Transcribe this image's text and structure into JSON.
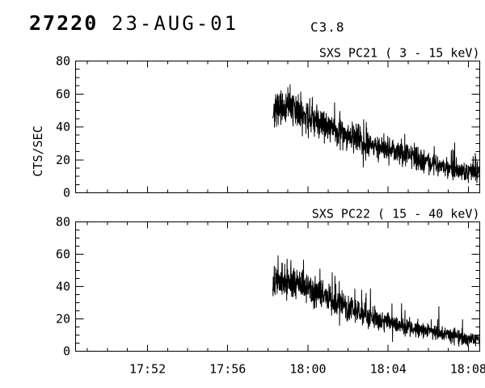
{
  "header": {
    "sequence_number": "27220",
    "date": "23-AUG-01",
    "goes_class": "C3.8"
  },
  "style": {
    "foreground": "#000000",
    "background": "#ffffff"
  },
  "x_axis": {
    "tick_labels": [
      "17:52",
      "17:56",
      "18:00",
      "18:04",
      "18:08"
    ],
    "tick_minutes_rel_1800": [
      -8,
      -4,
      0,
      4,
      8
    ],
    "minor_step_minutes": 1,
    "domain_minutes_rel_1800": [
      -11.59,
      8.57
    ]
  },
  "chart_data": [
    {
      "type": "line",
      "title": "SXS PC21  (  3 - 15 keV)",
      "ylabel": "CTS/SEC",
      "ylim": [
        0,
        80
      ],
      "ymajor_interval": 20,
      "yminor_interval": 5,
      "ytick_labels": [
        "0",
        "20",
        "40",
        "60",
        "80"
      ],
      "show_x_tick_labels": false,
      "grid": false,
      "series": {
        "name": "SXS PC21 (3-15 keV)",
        "start_minute": -1.75,
        "end_minute": 8.57,
        "envelope_minute_value": [
          [
            -1.75,
            50
          ],
          [
            -1,
            51
          ],
          [
            0,
            46
          ],
          [
            1,
            41
          ],
          [
            2,
            35
          ],
          [
            3,
            30
          ],
          [
            4,
            27
          ],
          [
            5,
            23
          ],
          [
            6,
            19
          ],
          [
            7,
            15
          ],
          [
            8,
            13
          ],
          [
            8.57,
            12
          ]
        ],
        "noise_std_base": 1.8,
        "noise_std_frac": 0.07,
        "spike_chance": 0.022,
        "spike_amp": 16,
        "dip_chance": 0.012,
        "seed": 7
      }
    },
    {
      "type": "line",
      "title": "SXS PC22  ( 15 - 40 keV)",
      "ylabel": "",
      "ylim": [
        0,
        80
      ],
      "ymajor_interval": 20,
      "yminor_interval": 5,
      "ytick_labels": [
        "0",
        "20",
        "40",
        "60",
        "80"
      ],
      "show_x_tick_labels": true,
      "grid": false,
      "series": {
        "name": "SXS PC22 (15-40 keV)",
        "start_minute": -1.75,
        "end_minute": 8.57,
        "envelope_minute_value": [
          [
            -1.75,
            44
          ],
          [
            -1,
            43
          ],
          [
            0,
            40
          ],
          [
            1,
            33
          ],
          [
            2,
            27
          ],
          [
            3,
            22
          ],
          [
            4,
            18
          ],
          [
            5,
            15
          ],
          [
            6,
            13
          ],
          [
            7,
            10
          ],
          [
            8,
            8
          ],
          [
            8.57,
            7
          ]
        ],
        "noise_std_base": 1.6,
        "noise_std_frac": 0.07,
        "spike_chance": 0.02,
        "spike_amp": 14,
        "dip_chance": 0.014,
        "seed": 13
      }
    }
  ]
}
